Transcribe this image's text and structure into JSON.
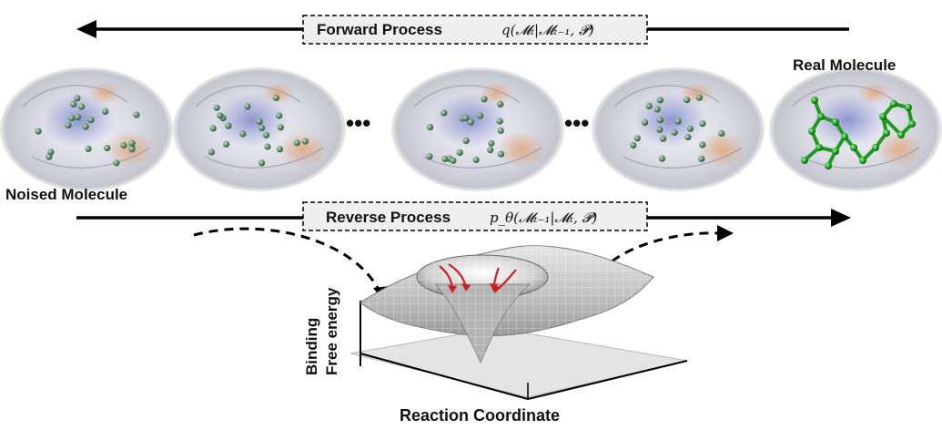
{
  "forward": {
    "label": "Forward Process",
    "formula": "q(𝓜ₜ|𝓜ₜ₋₁, 𝓟)"
  },
  "reverse": {
    "label": "Reverse Process",
    "formula": "p_θ(𝓜ₜ₋₁|𝓜ₜ, 𝓟)"
  },
  "labels": {
    "real_molecule": "Real Molecule",
    "noised_molecule": "Noised Molecule",
    "ellipsis": "•••",
    "y_axis_line1": "Binding",
    "y_axis_line2": "Free energy",
    "x_axis": "Reaction Coordinate"
  },
  "colors": {
    "arrow": "#000000",
    "atom": "#5f8f6a",
    "real_molecule": "#2db52d",
    "funnel_arrow": "#cc1f1f",
    "pocket_blue": "#7d86c9",
    "pocket_orange": "#e0a070",
    "surface_gray": "#b9b9c4"
  }
}
